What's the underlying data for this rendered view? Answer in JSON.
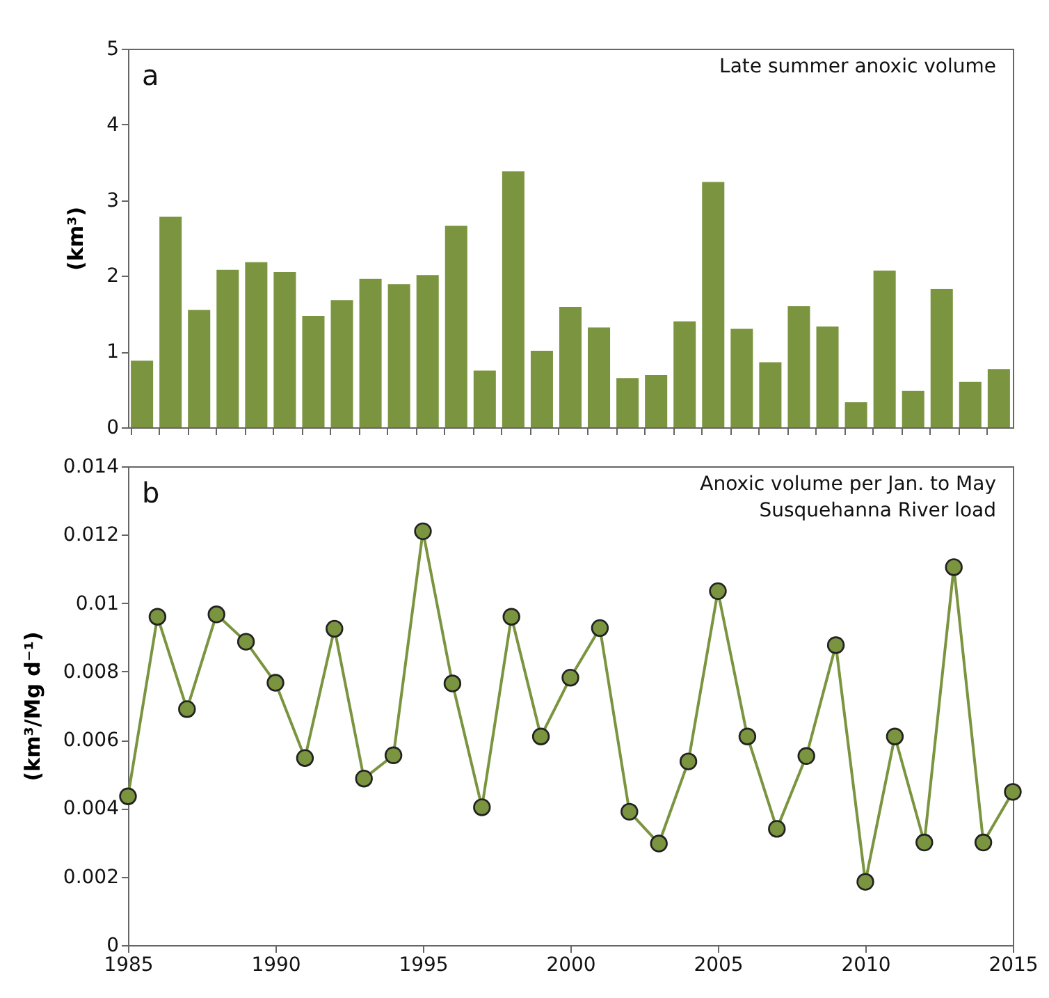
{
  "chart_data": [
    {
      "type": "bar",
      "title": "Late summer anoxic volume",
      "ylabel": "(km³)",
      "annotations": [
        "a"
      ],
      "categories": [
        null,
        null,
        null,
        null,
        null,
        null,
        null,
        null,
        null,
        null,
        null,
        null,
        null,
        null,
        null,
        null,
        null,
        null,
        null,
        null,
        null,
        null,
        null,
        null,
        null,
        null,
        null,
        null,
        null,
        null,
        null
      ],
      "values": [
        0.88,
        2.78,
        1.55,
        2.08,
        2.18,
        2.05,
        1.47,
        1.68,
        1.96,
        1.89,
        2.01,
        2.66,
        0.75,
        3.38,
        1.01,
        1.59,
        1.32,
        0.65,
        0.69,
        1.4,
        3.24,
        1.3,
        0.86,
        1.6,
        1.33,
        0.33,
        2.07,
        0.48,
        1.83,
        0.6,
        0.77
      ],
      "color": "#7a943f",
      "ylim": [
        0,
        5
      ],
      "yticks": [
        0,
        1,
        2,
        3,
        4,
        5
      ],
      "tick_labels": "y"
    },
    {
      "type": "line",
      "title": "Anoxic volume per Jan. to May\nSusquehanna River load",
      "ylabel": "(km³/Mg d⁻¹)",
      "annotations": [
        "b"
      ],
      "x": [
        1985,
        1986,
        1987,
        1988,
        1989,
        1990,
        1991,
        1992,
        1993,
        1994,
        1995,
        1996,
        1997,
        1998,
        1999,
        2000,
        2001,
        2002,
        2003,
        2004,
        2005,
        2006,
        2007,
        2008,
        2009,
        2010,
        2011,
        2012,
        2013,
        2014,
        2015
      ],
      "values": [
        0.00435,
        0.0096,
        0.0069,
        0.00967,
        0.00887,
        0.00767,
        0.00547,
        0.00925,
        0.00487,
        0.00555,
        0.0121,
        0.00765,
        0.00403,
        0.0096,
        0.0061,
        0.00782,
        0.00927,
        0.0039,
        0.00297,
        0.00537,
        0.01035,
        0.0061,
        0.0034,
        0.00553,
        0.00877,
        0.00185,
        0.0061,
        0.003,
        0.01105,
        0.003,
        0.00448
      ],
      "color": "#7a943f",
      "marker": "circle",
      "line_style": "solid",
      "xlim": [
        1985,
        2015
      ],
      "xticks": [
        1985,
        1990,
        1995,
        2000,
        2005,
        2010,
        2015
      ],
      "ylim": [
        0,
        0.014
      ],
      "yticks": [
        0,
        0.002,
        0.004,
        0.006,
        0.008,
        0.01,
        0.012,
        0.014
      ]
    }
  ]
}
